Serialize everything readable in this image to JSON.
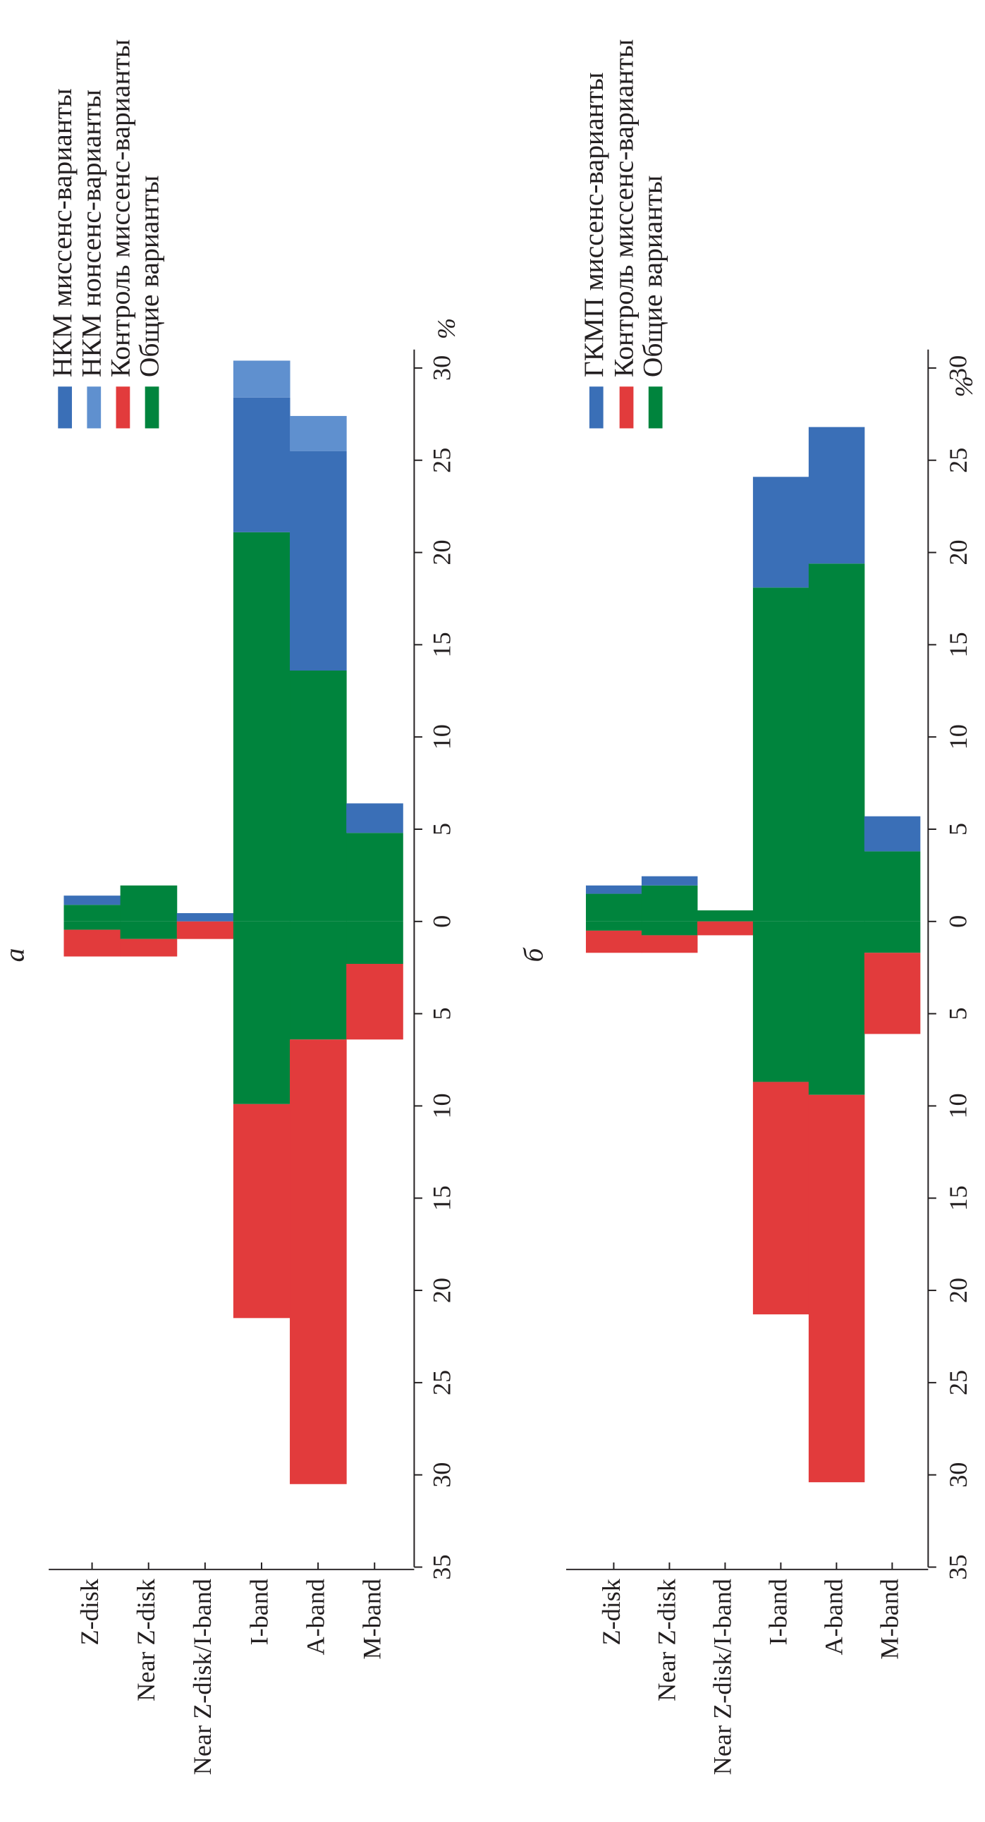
{
  "chart_data": [
    {
      "type": "bar",
      "title": "а",
      "y_label": "%",
      "categories": [
        "Z-disk",
        "Near Z-disk",
        "Near Z-disk/I-band",
        "I-band",
        "A-band",
        "M-band"
      ],
      "series": [
        {
          "name": "НКМ миссенс-варианты",
          "color": "#3a6fb7",
          "values": [
            0.5,
            0,
            0.45,
            7.3,
            11.9,
            1.6
          ]
        },
        {
          "name": "НКМ нонсенс-варианты",
          "color": "#5f90cf",
          "values": [
            0,
            0,
            0,
            2.0,
            1.9,
            0
          ]
        },
        {
          "name": "Контроль миссенс-варианты",
          "color": "#e23b3c",
          "values": [
            -1.45,
            -0.95,
            -0.95,
            -11.6,
            -24.1,
            -4.1
          ]
        },
        {
          "name": "Общие варианты",
          "color": "#00843d",
          "values": [
            0.9,
            1.95,
            0,
            21.1,
            13.6,
            4.8
          ],
          "negative_values": [
            -0.45,
            -0.95,
            0,
            -9.9,
            -6.4,
            -2.3
          ]
        }
      ],
      "ylim": [
        -35,
        31
      ],
      "yticks": [
        {
          "value": -35,
          "label": "35"
        },
        {
          "value": -30,
          "label": "30"
        },
        {
          "value": -25,
          "label": "25"
        },
        {
          "value": -20,
          "label": "20"
        },
        {
          "value": -15,
          "label": "15"
        },
        {
          "value": -10,
          "label": "10"
        },
        {
          "value": -5,
          "label": "5"
        },
        0,
        5,
        10,
        15,
        20,
        25,
        30
      ]
    },
    {
      "type": "bar",
      "title": "б",
      "y_label": "%",
      "categories": [
        "Z-disk",
        "Near Z-disk",
        "Near Z-disk/I-band",
        "I-band",
        "A-band",
        "M-band"
      ],
      "series": [
        {
          "name": "ГКМП миссенс-варианты",
          "color": "#3a6fb7",
          "values": [
            0.45,
            0.5,
            0,
            6.0,
            7.4,
            1.9
          ]
        },
        {
          "name": "Контроль миссенс-варианты",
          "color": "#e23b3c",
          "values": [
            -1.2,
            -0.95,
            -0.75,
            -12.6,
            -21.0,
            -4.4
          ]
        },
        {
          "name": "Общие варианты",
          "color": "#00843d",
          "values": [
            1.5,
            1.95,
            0.6,
            18.1,
            19.4,
            3.8
          ],
          "negative_values": [
            -0.5,
            -0.75,
            0,
            -8.7,
            -9.4,
            -1.7
          ]
        }
      ],
      "ylim": [
        -35,
        31
      ],
      "yticks": [
        {
          "value": -35,
          "label": "35"
        },
        {
          "value": -30,
          "label": "30"
        },
        {
          "value": -25,
          "label": "25"
        },
        {
          "value": -20,
          "label": "20"
        },
        {
          "value": -15,
          "label": "15"
        },
        {
          "value": -10,
          "label": "10"
        },
        {
          "value": -5,
          "label": "5"
        },
        0,
        5,
        10,
        15,
        20,
        25,
        30
      ]
    }
  ]
}
